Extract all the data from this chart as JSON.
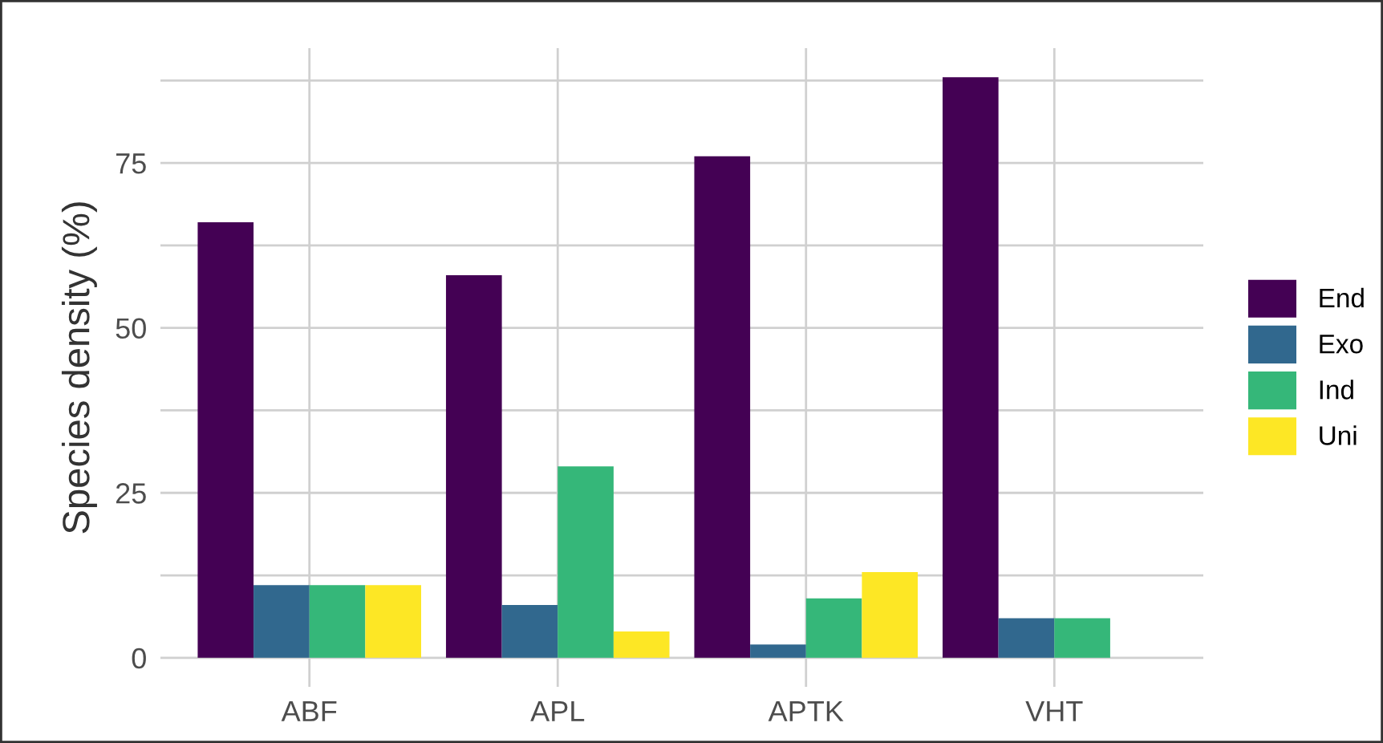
{
  "chart_data": {
    "type": "bar",
    "ylabel": "Species density (%)",
    "categories": [
      "ABF",
      "APL",
      "APTK",
      "VHT"
    ],
    "series": [
      {
        "name": "End",
        "color": "#440154",
        "values": [
          66,
          58,
          76,
          88
        ]
      },
      {
        "name": "Exo",
        "color": "#31688e",
        "values": [
          11,
          8,
          2,
          6
        ]
      },
      {
        "name": "Ind",
        "color": "#35b779",
        "values": [
          11,
          29,
          9,
          6
        ]
      },
      {
        "name": "Uni",
        "color": "#fde725",
        "values": [
          11,
          4,
          13,
          null
        ]
      }
    ],
    "ylim": [
      -4.4,
      92.4
    ],
    "yticks": [
      0,
      {
        "value": 12.5,
        "label": null
      },
      25,
      {
        "value": 37.5,
        "label": null
      },
      50,
      {
        "value": 62.5,
        "label": null
      },
      75,
      {
        "value": 87.5,
        "label": null
      }
    ],
    "grid": true,
    "legend": "right"
  }
}
